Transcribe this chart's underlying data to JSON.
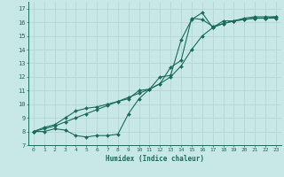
{
  "title": "",
  "xlabel": "Humidex (Indice chaleur)",
  "background_color": "#c8e8e8",
  "grid_color": "#b8d8d8",
  "line_color": "#1a6b5a",
  "xlim": [
    -0.5,
    23.5
  ],
  "ylim": [
    7,
    17.5
  ],
  "xticks": [
    0,
    1,
    2,
    3,
    4,
    5,
    6,
    7,
    8,
    9,
    10,
    11,
    12,
    13,
    14,
    15,
    16,
    17,
    18,
    19,
    20,
    21,
    22,
    23
  ],
  "yticks": [
    7,
    8,
    9,
    10,
    11,
    12,
    13,
    14,
    15,
    16,
    17
  ],
  "line1_x": [
    0,
    1,
    2,
    3,
    4,
    5,
    6,
    7,
    8,
    9,
    10,
    11,
    12,
    13,
    14,
    15,
    16,
    17,
    18,
    19,
    20,
    21,
    22,
    23
  ],
  "line1_y": [
    8.0,
    8.0,
    8.2,
    8.1,
    7.7,
    7.6,
    7.7,
    7.7,
    7.8,
    9.3,
    10.4,
    11.1,
    12.0,
    12.1,
    14.7,
    16.2,
    16.7,
    15.6,
    16.1,
    16.1,
    16.2,
    16.3,
    16.3,
    16.3
  ],
  "line2_x": [
    0,
    1,
    2,
    3,
    4,
    5,
    6,
    7,
    8,
    9,
    10,
    11,
    12,
    13,
    14,
    15,
    16,
    17,
    18,
    19,
    20,
    21,
    22,
    23
  ],
  "line2_y": [
    8.0,
    8.3,
    8.5,
    9.0,
    9.5,
    9.7,
    9.8,
    10.0,
    10.2,
    10.4,
    11.0,
    11.1,
    11.5,
    12.7,
    13.2,
    16.3,
    16.2,
    15.7,
    15.9,
    16.1,
    16.3,
    16.4,
    16.4,
    16.4
  ],
  "line3_x": [
    0,
    1,
    2,
    3,
    4,
    5,
    6,
    7,
    8,
    9,
    10,
    11,
    12,
    13,
    14,
    15,
    16,
    17,
    18,
    19,
    20,
    21,
    22,
    23
  ],
  "line3_y": [
    8.0,
    8.2,
    8.4,
    8.7,
    9.0,
    9.3,
    9.6,
    9.9,
    10.2,
    10.5,
    10.8,
    11.1,
    11.5,
    12.0,
    12.8,
    14.0,
    15.0,
    15.6,
    15.9,
    16.1,
    16.2,
    16.3,
    16.3,
    16.4
  ],
  "font_color": "#1a6b5a"
}
